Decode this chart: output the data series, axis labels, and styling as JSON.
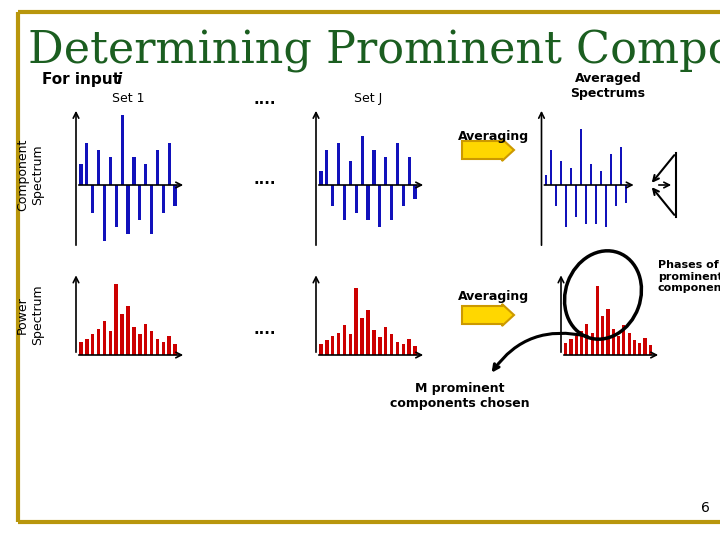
{
  "title": "Determining Prominent Components",
  "title_color": "#1B5E20",
  "title_fontsize": 32,
  "background_color": "#FFFFFF",
  "border_color": "#B8960C",
  "subtitle_text": "For input ",
  "subtitle_italic": "i",
  "set1_label": "Set 1",
  "setj_label": "Set J",
  "dots_label": "....",
  "averaging_label": "Averaging",
  "averaged_spectrums_label": "Averaged\nSpectrums",
  "phases_label": "Phases of\nprominent\ncomponents",
  "m_prominent_label": "M prominent\ncomponents chosen",
  "comp_spectrum_label": "Component\nSpectrum",
  "power_spectrum_label": "Power\nSpectrum",
  "blue_color": "#1111BB",
  "red_color": "#CC0000",
  "arrow_color": "#FFD700",
  "arrow_edge_color": "#CC9900",
  "page_number": "6",
  "comp_bars1": [
    0.3,
    0.6,
    -0.4,
    0.5,
    -0.8,
    0.4,
    -0.6,
    1.0,
    -0.7,
    0.4,
    -0.5,
    0.3,
    -0.7,
    0.5,
    -0.4,
    0.6,
    -0.3
  ],
  "comp_barsJ": [
    0.2,
    0.5,
    -0.3,
    0.6,
    -0.5,
    0.35,
    -0.4,
    0.7,
    -0.5,
    0.5,
    -0.6,
    0.4,
    -0.5,
    0.6,
    -0.3,
    0.4,
    -0.2
  ],
  "comp_bars_avg": [
    0.15,
    0.5,
    -0.3,
    0.35,
    -0.6,
    0.25,
    -0.45,
    0.8,
    -0.55,
    0.3,
    -0.55,
    0.2,
    -0.6,
    0.45,
    -0.3,
    0.55,
    -0.25
  ],
  "power_bars1": [
    0.18,
    0.22,
    0.28,
    0.35,
    0.45,
    0.32,
    0.95,
    0.55,
    0.65,
    0.38,
    0.28,
    0.42,
    0.32,
    0.22,
    0.18,
    0.25,
    0.15
  ],
  "power_barsJ": [
    0.15,
    0.2,
    0.25,
    0.3,
    0.4,
    0.28,
    0.9,
    0.5,
    0.6,
    0.33,
    0.24,
    0.38,
    0.28,
    0.18,
    0.15,
    0.22,
    0.12
  ],
  "power_bars_avg": [
    0.16,
    0.21,
    0.26,
    0.32,
    0.42,
    0.3,
    0.92,
    0.52,
    0.62,
    0.35,
    0.26,
    0.4,
    0.3,
    0.2,
    0.16,
    0.23,
    0.13
  ]
}
